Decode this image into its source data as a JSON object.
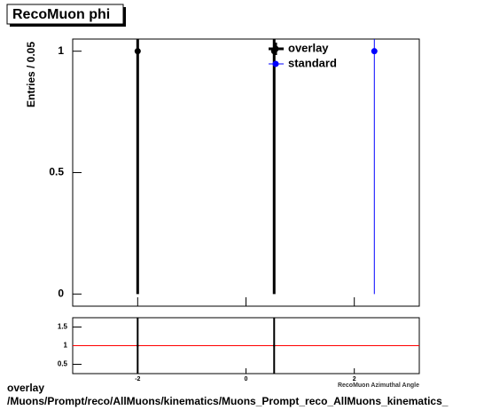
{
  "chart_data": [
    {
      "type": "errorbar",
      "title": "RecoMuon phi",
      "y_label": "Entries / 0.05",
      "xlim": [
        -3.2,
        3.2
      ],
      "ylim": [
        -0.05,
        1.05
      ],
      "yticks": [
        0,
        0.5,
        1
      ],
      "legend": "upper right",
      "series": [
        {
          "name": "overlay",
          "color": "#000000",
          "x": [
            -2,
            0.52
          ],
          "values": [
            1,
            1
          ],
          "errors": [
            1,
            1
          ]
        },
        {
          "name": "standard",
          "color": "#0000ff",
          "x": [
            2.37
          ],
          "values": [
            1
          ],
          "errors": [
            1
          ]
        }
      ]
    },
    {
      "type": "ratio",
      "x_label": "RecoMuon Azimuthal Angle",
      "xlim": [
        -3.2,
        3.2
      ],
      "xticks": [
        -2,
        0,
        2
      ],
      "ylim": [
        0.25,
        1.75
      ],
      "yticks": [
        0.5,
        1,
        1.5
      ],
      "reference_line": 1,
      "reference_color": "#ff0000",
      "series": [
        {
          "color": "#000000",
          "x": [
            -2,
            0.52
          ],
          "values": [
            1,
            1
          ],
          "errors": [
            1,
            1
          ]
        }
      ]
    }
  ],
  "footer": {
    "label": "overlay",
    "path": "/Muons/Prompt/reco/AllMuons/kinematics/Muons_Prompt_reco_AllMuons_kinematics_"
  }
}
